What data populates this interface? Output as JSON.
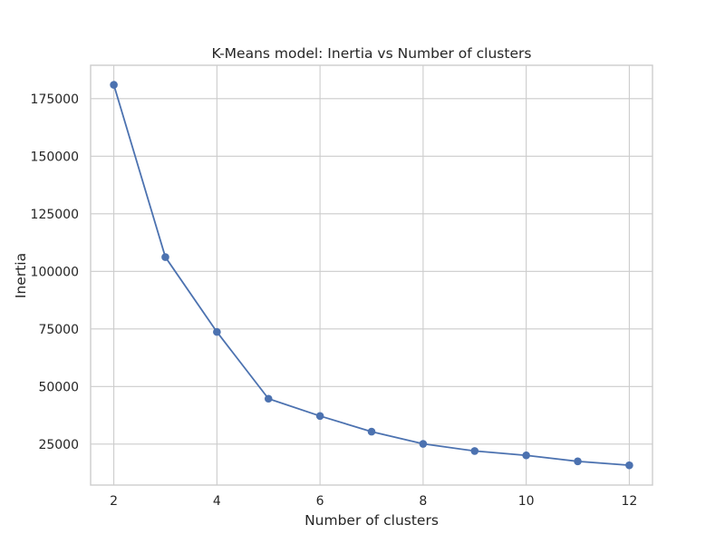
{
  "chart_data": {
    "type": "line",
    "title": "K-Means model: Inertia vs Number of clusters",
    "xlabel": "Number of clusters",
    "ylabel": "Inertia",
    "xlim": [
      1.55,
      12.45
    ],
    "ylim": [
      7200,
      189500
    ],
    "x_ticks": [
      2,
      4,
      6,
      8,
      10,
      12
    ],
    "y_ticks": [
      25000,
      50000,
      75000,
      100000,
      125000,
      150000,
      175000
    ],
    "grid": true,
    "legend": "none",
    "series": [
      {
        "x": [
          2,
          3,
          4,
          5,
          6,
          7,
          8,
          9,
          10,
          11,
          12
        ],
        "values": [
          181000,
          106200,
          73700,
          44700,
          37200,
          30400,
          25100,
          22000,
          20100,
          17500,
          15800
        ],
        "color": "#4c72b0",
        "marker": "circle"
      }
    ]
  }
}
